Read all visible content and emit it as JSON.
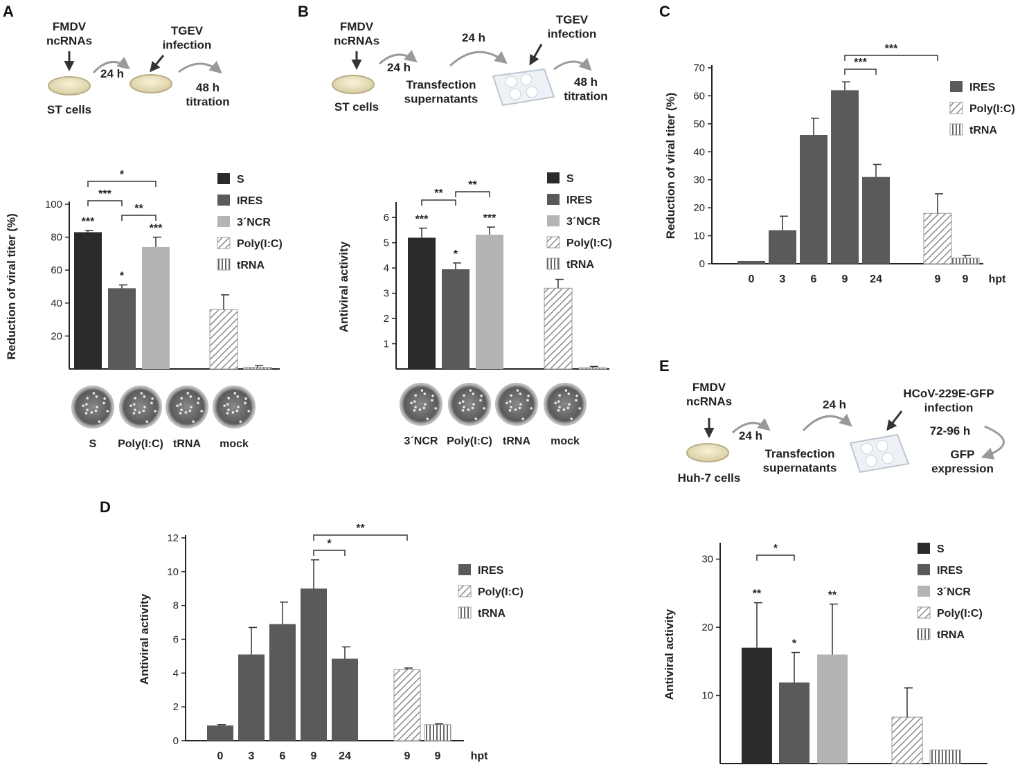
{
  "colors": {
    "S": "#2a2a2a",
    "IRES": "#5a5a5a",
    "NCR3": "#b4b4b4",
    "axis": "#222222"
  },
  "schematic_A": {
    "label": "A",
    "ncrnas": "FMDV\nncRNAs",
    "t24": "24 h",
    "cells": "ST cells",
    "infection": "TGEV\ninfection",
    "t48": "48 h\ntitration"
  },
  "schematic_B": {
    "label": "B",
    "ncrnas": "FMDV\nncRNAs",
    "t24a": "24 h",
    "t24b": "24 h",
    "cells": "ST cells",
    "supernatants": "Transfection\nsupernatants",
    "infection": "TGEV\ninfection",
    "t48": "48 h\ntitration"
  },
  "schematic_E": {
    "label": "E",
    "ncrnas": "FMDV\nncRNAs",
    "t24a": "24 h",
    "t24b": "24 h",
    "cells": "Huh-7 cells",
    "supernatants": "Transfection\nsupernatants",
    "infection": "HCoV-229E-GFP\ninfection",
    "t72": "72-96 h",
    "gfp": "GFP\nexpression"
  },
  "chart_data": [
    {
      "id": "A",
      "type": "bar",
      "ylabel": "Reduction of viral titer (%)",
      "ylim": [
        0,
        100
      ],
      "yticks": [
        20,
        40,
        60,
        80,
        100
      ],
      "bars": [
        {
          "group": "S",
          "value": 83,
          "error": 1,
          "sig": "***"
        },
        {
          "group": "IRES",
          "value": 49,
          "error": 2,
          "sig": "*"
        },
        {
          "group": "3´NCR",
          "value": 74,
          "error": 6,
          "sig": "***"
        },
        {
          "group": "Poly(I:C)",
          "value": 36,
          "error": 9,
          "sig": ""
        },
        {
          "group": "tRNA",
          "value": 1,
          "error": 1,
          "sig": ""
        }
      ],
      "comparisons": [
        {
          "from": 0,
          "to": 1,
          "sig": "***"
        },
        {
          "from": 1,
          "to": 2,
          "sig": "**"
        },
        {
          "from": 0,
          "to": 2,
          "sig": "*"
        }
      ],
      "legend": [
        "S",
        "IRES",
        "3´NCR",
        "Poly(I:C)",
        "tRNA"
      ],
      "plaque_labels": [
        "S",
        "Poly(I:C)",
        "tRNA",
        "mock"
      ]
    },
    {
      "id": "B",
      "type": "bar",
      "ylabel": "Antiviral activity",
      "ylim": [
        0,
        6.5
      ],
      "yticks": [
        1,
        2,
        3,
        4,
        5,
        6
      ],
      "bars": [
        {
          "group": "S",
          "value": 5.2,
          "error": 0.38,
          "sig": "***"
        },
        {
          "group": "IRES",
          "value": 3.95,
          "error": 0.25,
          "sig": "*"
        },
        {
          "group": "3´NCR",
          "value": 5.32,
          "error": 0.3,
          "sig": "***"
        },
        {
          "group": "Poly(I:C)",
          "value": 3.2,
          "error": 0.35,
          "sig": ""
        },
        {
          "group": "tRNA",
          "value": 0.05,
          "error": 0.05,
          "sig": ""
        }
      ],
      "comparisons": [
        {
          "from": 0,
          "to": 1,
          "sig": "**"
        },
        {
          "from": 1,
          "to": 2,
          "sig": "**"
        }
      ],
      "legend": [
        "S",
        "IRES",
        "3´NCR",
        "Poly(I:C)",
        "tRNA"
      ],
      "plaque_labels": [
        "3´NCR",
        "Poly(I:C)",
        "tRNA",
        "mock"
      ]
    },
    {
      "id": "C",
      "type": "bar",
      "label": "C",
      "ylabel": "Reduction of viral titer (%)",
      "ylim": [
        0,
        70
      ],
      "yticks": [
        0,
        10,
        20,
        30,
        40,
        50,
        60,
        70
      ],
      "categories": [
        "0",
        "3",
        "6",
        "9",
        "24",
        "9",
        "9"
      ],
      "unit": "hpt",
      "bars": [
        {
          "group": "IRES",
          "value": 1,
          "error": 0
        },
        {
          "group": "IRES",
          "value": 12,
          "error": 5
        },
        {
          "group": "IRES",
          "value": 46,
          "error": 6
        },
        {
          "group": "IRES",
          "value": 62,
          "error": 3
        },
        {
          "group": "IRES",
          "value": 31,
          "error": 4.5
        },
        {
          "group": "Poly(I:C)",
          "value": 18,
          "error": 7
        },
        {
          "group": "tRNA",
          "value": 2,
          "error": 1
        }
      ],
      "comparisons": [
        {
          "from": 3,
          "to": 4,
          "sig": "***"
        },
        {
          "from": 3,
          "to": 5,
          "sig": "***"
        }
      ],
      "legend": [
        "IRES",
        "Poly(I:C)",
        "tRNA"
      ]
    },
    {
      "id": "D",
      "type": "bar",
      "label": "D",
      "ylabel": "Antiviral activity",
      "ylim": [
        0,
        12
      ],
      "yticks": [
        0,
        2,
        4,
        6,
        8,
        10,
        12
      ],
      "categories": [
        "0",
        "3",
        "6",
        "9",
        "24",
        "9",
        "9"
      ],
      "unit": "hpt",
      "bars": [
        {
          "group": "IRES",
          "value": 0.9,
          "error": 0.05
        },
        {
          "group": "IRES",
          "value": 5.1,
          "error": 1.6
        },
        {
          "group": "IRES",
          "value": 6.9,
          "error": 1.3
        },
        {
          "group": "IRES",
          "value": 9.0,
          "error": 1.7
        },
        {
          "group": "IRES",
          "value": 4.85,
          "error": 0.7
        },
        {
          "group": "Poly(I:C)",
          "value": 4.2,
          "error": 0.1
        },
        {
          "group": "tRNA",
          "value": 0.95,
          "error": 0.05
        }
      ],
      "comparisons": [
        {
          "from": 3,
          "to": 4,
          "sig": "*"
        },
        {
          "from": 3,
          "to": 5,
          "sig": "**"
        }
      ],
      "legend": [
        "IRES",
        "Poly(I:C)",
        "tRNA"
      ]
    },
    {
      "id": "E",
      "type": "bar",
      "ylabel": "Antiviral activity",
      "ylim": [
        0,
        32
      ],
      "yticks": [
        10,
        20,
        30
      ],
      "bars": [
        {
          "group": "S",
          "value": 17,
          "error": 6.6,
          "sig": "**"
        },
        {
          "group": "IRES",
          "value": 11.9,
          "error": 4.4,
          "sig": "*"
        },
        {
          "group": "3´NCR",
          "value": 16,
          "error": 7.4,
          "sig": "**"
        },
        {
          "group": "Poly(I:C)",
          "value": 6.8,
          "error": 4.3,
          "sig": ""
        },
        {
          "group": "tRNA",
          "value": 2,
          "error": 0,
          "sig": ""
        }
      ],
      "comparisons": [
        {
          "from": 0,
          "to": 1,
          "sig": "*"
        }
      ],
      "legend": [
        "S",
        "IRES",
        "3´NCR",
        "Poly(I:C)",
        "tRNA"
      ]
    }
  ]
}
